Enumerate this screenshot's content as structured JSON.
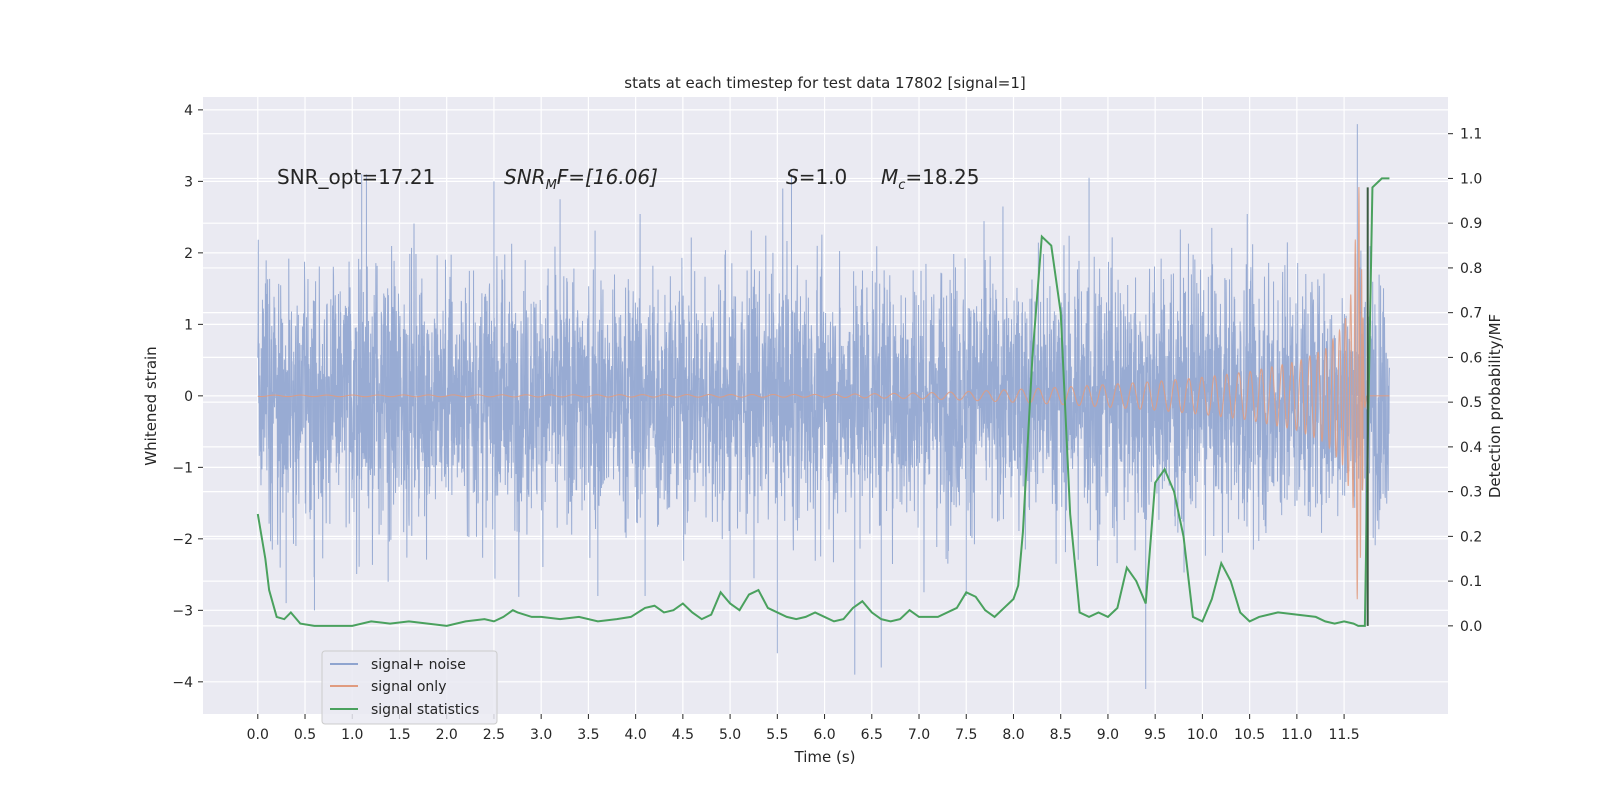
{
  "chart_data": {
    "type": "line",
    "title": "stats at each timestep for test data 17802 [signal=1]",
    "xlabel": "Time (s)",
    "ylabel": "Whitened strain",
    "y2label": "Detection probability/MF",
    "xlim": [
      -0.58,
      12.6
    ],
    "ylim": [
      -4.45,
      4.18
    ],
    "y2lim": [
      -0.197,
      1.182
    ],
    "x_ticks": [
      "0.0",
      "0.5",
      "1.0",
      "1.5",
      "2.0",
      "2.5",
      "3.0",
      "3.5",
      "4.0",
      "4.5",
      "5.0",
      "5.5",
      "6.0",
      "6.5",
      "7.0",
      "7.5",
      "8.0",
      "8.5",
      "9.0",
      "9.5",
      "10.0",
      "10.5",
      "11.0",
      "11.5"
    ],
    "y_ticks": [
      "−4",
      "−3",
      "−2",
      "−1",
      "0",
      "1",
      "2",
      "3",
      "4"
    ],
    "y2_ticks": [
      "0.0",
      "0.1",
      "0.2",
      "0.3",
      "0.4",
      "0.5",
      "0.6",
      "0.7",
      "0.8",
      "0.9",
      "1.0",
      "1.1"
    ],
    "grid": true,
    "legend_position": "lower-left",
    "annotations": {
      "snr_opt": "SNR_opt=17.21",
      "snr_mf": "SNR",
      "snr_mf_sub": "M",
      "snr_mf_rest": "F=[16.06]",
      "s_label": "S",
      "s_value": "=1.0",
      "mc_label": "M",
      "mc_sub": "c",
      "mc_value": "=18.25"
    },
    "series": [
      {
        "name": "signal+ noise",
        "color": "#8fa4cf",
        "summary": "white noise strain between about -2.5 and 2.5 with peaks near ±3.8, spanning t=0.0 to 11.98 s",
        "x_range": [
          0.0,
          11.98
        ],
        "typical_amplitude": 1.6,
        "spikes": [
          [
            0.3,
            -2.9
          ],
          [
            0.6,
            -3.0
          ],
          [
            1.1,
            3.1
          ],
          [
            1.15,
            3.1
          ],
          [
            1.38,
            -2.6
          ],
          [
            2.5,
            3.0
          ],
          [
            3.2,
            2.75
          ],
          [
            3.6,
            -2.8
          ],
          [
            4.1,
            -2.8
          ],
          [
            5.0,
            -2.9
          ],
          [
            5.5,
            -3.6
          ],
          [
            5.65,
            3.1
          ],
          [
            6.32,
            -3.9
          ],
          [
            6.6,
            -3.8
          ],
          [
            7.5,
            -2.8
          ],
          [
            8.8,
            3.05
          ],
          [
            9.4,
            -4.1
          ],
          [
            11.64,
            3.8
          ]
        ]
      },
      {
        "name": "signal only",
        "color": "#e09b7f",
        "summary": "chirp waveform, near zero until ~7.5 s, growing oscillation amplitude to ~3.2 at merger near 11.65 s, then ringdown to zero",
        "x": [
          0.0,
          6.0,
          7.0,
          7.5,
          8.0,
          8.5,
          9.0,
          9.5,
          10.0,
          10.5,
          11.0,
          11.3,
          11.5,
          11.6,
          11.65,
          11.7,
          11.75,
          11.98
        ],
        "amplitude": [
          0.01,
          0.02,
          0.04,
          0.06,
          0.09,
          0.12,
          0.16,
          0.2,
          0.26,
          0.34,
          0.48,
          0.65,
          1.0,
          1.6,
          3.2,
          1.2,
          0.0,
          0.0
        ]
      },
      {
        "name": "signal statistics",
        "color": "#4aa15e",
        "x": [
          0.0,
          0.08,
          0.12,
          0.2,
          0.28,
          0.35,
          0.45,
          0.6,
          0.8,
          1.0,
          1.2,
          1.4,
          1.6,
          1.8,
          2.0,
          2.2,
          2.4,
          2.5,
          2.6,
          2.7,
          2.75,
          2.9,
          3.0,
          3.2,
          3.4,
          3.6,
          3.8,
          3.95,
          4.1,
          4.2,
          4.3,
          4.4,
          4.5,
          4.6,
          4.7,
          4.8,
          4.9,
          5.0,
          5.1,
          5.2,
          5.3,
          5.4,
          5.6,
          5.7,
          5.8,
          5.9,
          6.0,
          6.1,
          6.2,
          6.3,
          6.4,
          6.5,
          6.6,
          6.7,
          6.8,
          6.9,
          7.0,
          7.2,
          7.4,
          7.5,
          7.6,
          7.7,
          7.8,
          7.9,
          8.0,
          8.05,
          8.1,
          8.2,
          8.3,
          8.4,
          8.5,
          8.6,
          8.7,
          8.8,
          8.9,
          9.0,
          9.1,
          9.2,
          9.3,
          9.4,
          9.5,
          9.6,
          9.7,
          9.8,
          9.9,
          10.0,
          10.1,
          10.2,
          10.3,
          10.4,
          10.5,
          10.6,
          10.8,
          11.0,
          11.2,
          11.3,
          11.4,
          11.5,
          11.6,
          11.65,
          11.7,
          11.72,
          11.75,
          11.8,
          11.85,
          11.9,
          11.98
        ],
        "y": [
          0.25,
          0.15,
          0.08,
          0.02,
          0.015,
          0.03,
          0.005,
          0.0,
          0.0,
          0.0,
          0.01,
          0.005,
          0.01,
          0.005,
          0.0,
          0.01,
          0.015,
          0.01,
          0.02,
          0.035,
          0.03,
          0.02,
          0.02,
          0.015,
          0.02,
          0.01,
          0.015,
          0.02,
          0.04,
          0.045,
          0.03,
          0.035,
          0.05,
          0.03,
          0.015,
          0.025,
          0.075,
          0.05,
          0.035,
          0.07,
          0.08,
          0.04,
          0.02,
          0.015,
          0.02,
          0.03,
          0.02,
          0.01,
          0.015,
          0.04,
          0.055,
          0.03,
          0.015,
          0.01,
          0.015,
          0.035,
          0.02,
          0.02,
          0.04,
          0.075,
          0.065,
          0.035,
          0.02,
          0.04,
          0.06,
          0.09,
          0.21,
          0.6,
          0.87,
          0.85,
          0.7,
          0.25,
          0.03,
          0.02,
          0.03,
          0.02,
          0.04,
          0.13,
          0.1,
          0.05,
          0.32,
          0.35,
          0.3,
          0.2,
          0.02,
          0.01,
          0.06,
          0.14,
          0.1,
          0.03,
          0.01,
          0.02,
          0.03,
          0.025,
          0.02,
          0.01,
          0.005,
          0.01,
          0.005,
          0.0,
          0.0,
          0.0,
          0.4,
          0.98,
          0.99,
          1.0,
          1.0
        ]
      }
    ]
  }
}
